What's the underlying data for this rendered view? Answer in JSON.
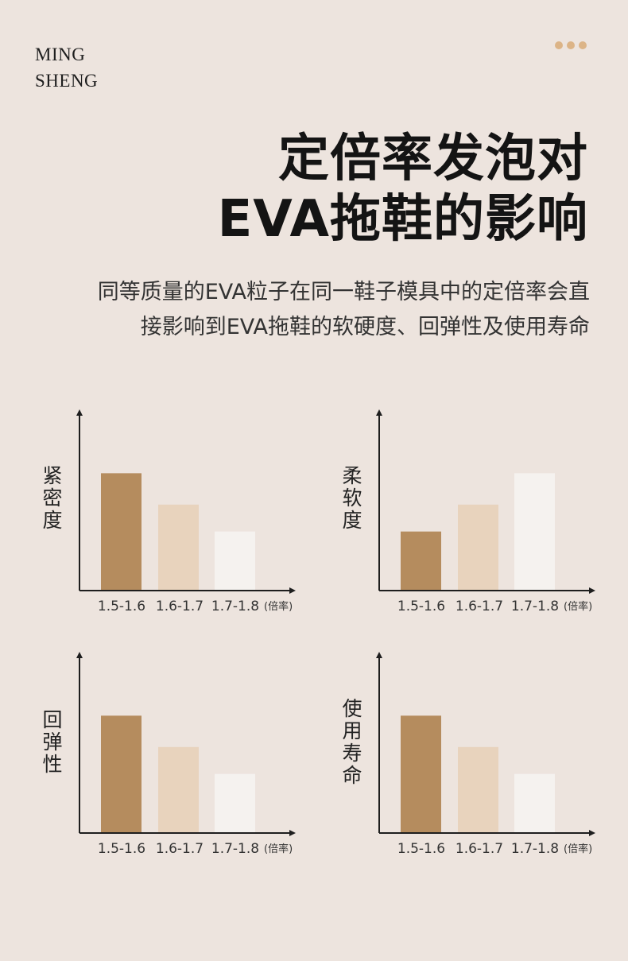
{
  "brand": {
    "line1": "MING",
    "line2": "SHENG"
  },
  "colors": {
    "background": "#ede4de",
    "bar_dark": "#b58c5e",
    "bar_mid": "#e8d3bd",
    "bar_light": "#f5f2ef",
    "dots": "#dcb487",
    "axis": "#1e1e1e"
  },
  "title": {
    "line1": "定倍率发泡对",
    "line2": "EVA拖鞋的影响"
  },
  "subtitle": {
    "line1": "同等质量的EVA粒子在同一鞋子模具中的定倍率会直",
    "line2": "接影响到EVA拖鞋的软硬度、回弹性及使用寿命"
  },
  "chart_data": [
    {
      "type": "bar",
      "ylabel": "紧密度",
      "categories": [
        "1.5-1.6",
        "1.6-1.7",
        "1.7-1.8"
      ],
      "unit": "(倍率)",
      "values": [
        0.78,
        0.57,
        0.39
      ],
      "ylim": [
        0,
        1
      ]
    },
    {
      "type": "bar",
      "ylabel": "柔软度",
      "categories": [
        "1.5-1.6",
        "1.6-1.7",
        "1.7-1.8"
      ],
      "unit": "(倍率)",
      "values": [
        0.39,
        0.57,
        0.78
      ],
      "ylim": [
        0,
        1
      ]
    },
    {
      "type": "bar",
      "ylabel": "回弹性",
      "categories": [
        "1.5-1.6",
        "1.6-1.7",
        "1.7-1.8"
      ],
      "unit": "(倍率)",
      "values": [
        0.78,
        0.57,
        0.39
      ],
      "ylim": [
        0,
        1
      ]
    },
    {
      "type": "bar",
      "ylabel": "使用寿命",
      "categories": [
        "1.5-1.6",
        "1.6-1.7",
        "1.7-1.8"
      ],
      "unit": "(倍率)",
      "values": [
        0.78,
        0.57,
        0.39
      ],
      "ylim": [
        0,
        1
      ]
    }
  ]
}
